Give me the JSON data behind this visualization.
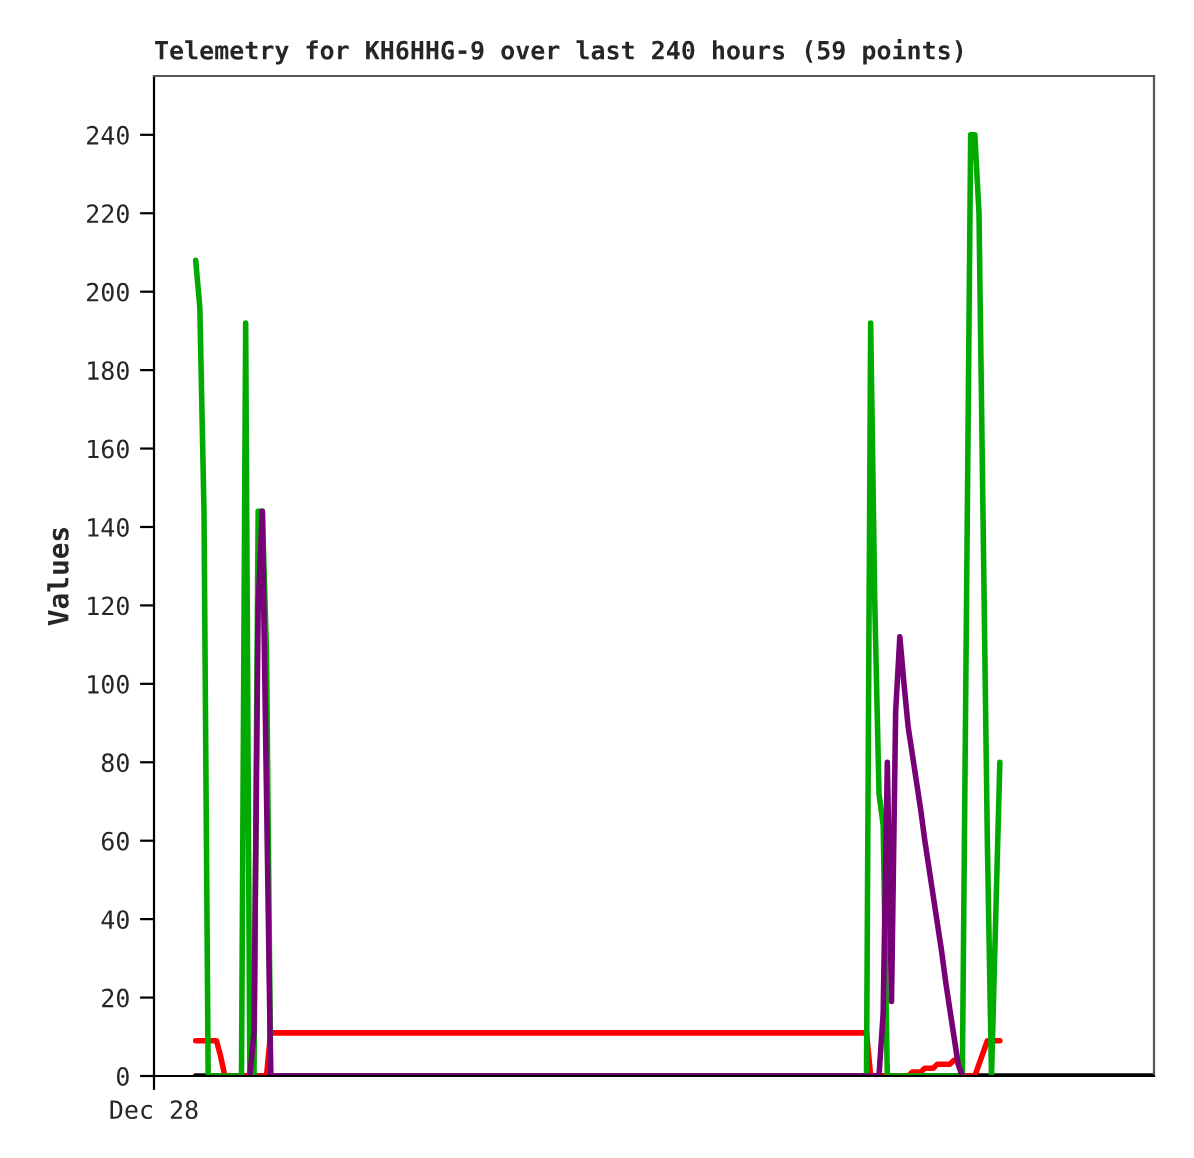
{
  "chart_data": {
    "type": "line",
    "title": "Telemetry for KH6HHG-9 over last 240 hours (59 points)",
    "ylabel": "Values",
    "categories": [
      "Dec 28",
      null,
      null,
      null,
      null,
      null,
      null,
      null,
      null,
      null,
      null,
      null,
      null,
      null,
      null,
      null,
      null,
      null,
      null,
      null,
      null,
      null,
      null,
      null,
      null,
      null,
      null,
      null,
      null,
      null,
      null,
      null,
      null,
      null,
      null,
      null,
      null,
      null,
      null,
      null,
      null,
      null,
      null,
      null,
      null,
      null,
      null,
      null,
      null,
      null,
      null,
      null,
      null,
      null,
      null,
      null,
      null,
      null,
      null,
      null,
      null,
      null,
      null,
      null,
      null,
      null,
      null,
      null,
      null,
      null,
      null,
      null,
      null,
      null,
      null,
      null,
      null,
      null,
      null,
      null,
      null,
      null,
      null,
      null,
      null,
      null,
      null,
      null,
      null,
      null,
      null,
      null,
      null,
      null,
      null,
      null,
      null,
      null,
      null,
      null,
      null,
      null,
      null,
      null,
      null,
      null,
      null,
      null,
      null,
      null,
      null,
      null,
      null,
      null,
      null,
      null,
      null,
      null,
      null,
      null,
      null,
      null,
      null,
      null,
      null,
      null,
      null,
      null,
      null,
      null,
      null,
      null,
      null,
      null,
      null,
      null,
      null,
      null,
      null,
      null,
      null,
      null,
      null,
      null,
      null,
      null,
      null,
      null,
      null,
      null,
      null,
      null,
      null,
      null,
      null,
      null,
      null,
      null,
      null,
      null,
      null,
      null,
      null,
      null,
      null,
      null,
      null,
      null,
      null,
      null,
      null,
      null,
      null,
      null,
      null,
      null,
      null,
      null,
      null,
      null,
      null,
      null,
      null,
      null,
      null,
      null,
      null,
      null,
      null,
      null,
      null,
      null,
      null,
      null,
      null,
      null,
      null,
      null,
      null,
      null,
      null,
      null,
      null,
      null,
      null,
      null,
      null,
      null,
      null,
      null,
      null,
      null,
      null,
      null,
      null,
      null,
      null,
      null,
      null,
      null,
      null,
      null,
      null,
      null,
      null,
      null,
      null,
      null,
      null,
      null,
      null,
      null,
      null,
      null,
      null,
      null,
      null,
      null,
      null,
      null,
      null
    ],
    "ylim": [
      0,
      255
    ],
    "yticks": [
      0,
      20,
      40,
      60,
      80,
      100,
      120,
      140,
      160,
      180,
      200,
      220,
      240
    ],
    "grid": false,
    "legend": false,
    "marker": "none",
    "line_style": "solid",
    "series": [
      {
        "color": "#000000",
        "values": [
          null,
          null,
          null,
          null,
          null,
          null,
          null,
          null,
          null,
          null,
          0,
          0,
          0,
          0,
          0,
          0,
          0,
          0,
          0,
          0,
          0,
          0,
          0,
          0,
          0,
          0,
          0,
          0,
          0,
          0,
          0,
          0,
          0,
          0,
          0,
          0,
          0,
          0,
          0,
          0,
          0,
          0,
          0,
          0,
          0,
          0,
          0,
          0,
          0,
          0,
          0,
          0,
          0,
          0,
          0,
          0,
          0,
          0,
          0,
          0,
          0,
          0,
          0,
          0,
          0,
          0,
          0,
          0,
          0,
          0,
          0,
          0,
          0,
          0,
          0,
          0,
          0,
          0,
          0,
          0,
          0,
          0,
          0,
          0,
          0,
          0,
          0,
          0,
          0,
          0,
          0,
          0,
          0,
          0,
          0,
          0,
          0,
          0,
          0,
          0,
          0,
          0,
          0,
          0,
          0,
          0,
          0,
          0,
          0,
          0,
          0,
          0,
          0,
          0,
          0,
          0,
          0,
          0,
          0,
          0,
          0,
          0,
          0,
          0,
          0,
          0,
          0,
          0,
          0,
          0,
          0,
          0,
          0,
          0,
          0,
          0,
          0,
          0,
          0,
          0,
          0,
          0,
          0,
          0,
          0,
          0,
          0,
          0,
          0,
          0,
          0,
          0,
          0,
          0,
          0,
          0,
          0,
          0,
          0,
          0,
          0,
          0,
          0,
          0,
          0,
          0,
          0,
          0,
          0,
          0,
          0,
          0,
          0,
          0,
          0,
          0,
          0,
          0,
          0,
          0,
          0,
          0,
          0,
          0,
          0,
          0,
          0,
          0,
          0,
          0,
          0,
          0,
          0,
          0,
          0,
          0,
          0,
          0,
          0,
          0,
          0,
          0,
          0,
          0,
          0,
          0,
          0,
          0,
          0,
          0,
          0,
          0,
          0,
          0,
          0,
          0,
          0,
          0,
          0,
          0,
          0,
          0,
          0,
          0,
          0,
          0,
          0,
          0,
          0,
          0,
          0,
          0,
          0,
          0,
          0,
          0,
          0,
          0,
          0,
          0,
          0
        ]
      },
      {
        "color": "#ff0000",
        "values": [
          null,
          null,
          null,
          null,
          null,
          null,
          null,
          null,
          null,
          null,
          9,
          9,
          9,
          9,
          9,
          9,
          5,
          0,
          0,
          0,
          0,
          0,
          0,
          0,
          0,
          0,
          0,
          0,
          11,
          11,
          11,
          11,
          11,
          11,
          11,
          11,
          11,
          11,
          11,
          11,
          11,
          11,
          11,
          11,
          11,
          11,
          11,
          11,
          11,
          11,
          11,
          11,
          11,
          11,
          11,
          11,
          11,
          11,
          11,
          11,
          11,
          11,
          11,
          11,
          11,
          11,
          11,
          11,
          11,
          11,
          11,
          11,
          11,
          11,
          11,
          11,
          11,
          11,
          11,
          11,
          11,
          11,
          11,
          11,
          11,
          11,
          11,
          11,
          11,
          11,
          11,
          11,
          11,
          11,
          11,
          11,
          11,
          11,
          11,
          11,
          11,
          11,
          11,
          11,
          11,
          11,
          11,
          11,
          11,
          11,
          11,
          11,
          11,
          11,
          11,
          11,
          11,
          11,
          11,
          11,
          11,
          11,
          11,
          11,
          11,
          11,
          11,
          11,
          11,
          11,
          11,
          11,
          11,
          11,
          11,
          11,
          11,
          11,
          11,
          11,
          11,
          11,
          11,
          11,
          11,
          11,
          11,
          11,
          11,
          11,
          11,
          11,
          11,
          11,
          11,
          11,
          11,
          11,
          11,
          11,
          11,
          11,
          11,
          11,
          11,
          11,
          11,
          11,
          11,
          11,
          11,
          11,
          0,
          0,
          0,
          0,
          0,
          0,
          0,
          0,
          0,
          0,
          1,
          1,
          1,
          2,
          2,
          2,
          3,
          3,
          3,
          3,
          4,
          4,
          0,
          0,
          0,
          0,
          3,
          6,
          9,
          9,
          9,
          9,
          null,
          null,
          null,
          null,
          null,
          null,
          null,
          null,
          null,
          null,
          null,
          null,
          null,
          null,
          null,
          null,
          null,
          null,
          null,
          null,
          null,
          null,
          null,
          null,
          null,
          null,
          null,
          null,
          null,
          null,
          null,
          null,
          null,
          null,
          null,
          null,
          null
        ]
      },
      {
        "color": "#00aa00",
        "values": [
          null,
          null,
          null,
          null,
          null,
          null,
          null,
          null,
          null,
          null,
          208,
          196,
          144,
          0,
          0,
          0,
          0,
          0,
          0,
          0,
          0,
          0,
          192,
          0,
          0,
          144,
          144,
          108,
          0,
          null,
          null,
          null,
          null,
          null,
          null,
          null,
          null,
          null,
          null,
          null,
          null,
          null,
          null,
          null,
          null,
          null,
          null,
          null,
          null,
          null,
          null,
          null,
          null,
          null,
          null,
          null,
          null,
          null,
          null,
          null,
          null,
          null,
          null,
          null,
          null,
          null,
          null,
          null,
          null,
          null,
          null,
          null,
          null,
          null,
          null,
          null,
          null,
          null,
          null,
          null,
          null,
          null,
          null,
          null,
          null,
          null,
          null,
          null,
          null,
          null,
          null,
          null,
          null,
          null,
          null,
          null,
          null,
          null,
          null,
          null,
          null,
          null,
          null,
          null,
          null,
          null,
          null,
          null,
          null,
          null,
          null,
          null,
          null,
          null,
          null,
          null,
          null,
          null,
          null,
          null,
          null,
          null,
          null,
          null,
          null,
          null,
          null,
          null,
          null,
          null,
          null,
          null,
          null,
          null,
          null,
          null,
          null,
          null,
          null,
          null,
          null,
          null,
          null,
          null,
          null,
          null,
          null,
          null,
          null,
          null,
          null,
          null,
          null,
          null,
          null,
          null,
          null,
          null,
          null,
          null,
          null,
          null,
          null,
          null,
          null,
          null,
          null,
          null,
          null,
          null,
          null,
          0,
          192,
          120,
          72,
          64,
          0,
          0,
          0,
          0,
          0,
          0,
          0,
          0,
          0,
          0,
          0,
          0,
          0,
          0,
          0,
          0,
          0,
          0,
          0,
          120,
          240,
          240,
          220,
          140,
          60,
          0,
          40,
          80,
          null,
          null,
          null,
          null,
          null,
          null,
          null,
          null,
          null,
          null,
          null,
          null,
          null,
          null,
          null,
          null,
          null,
          null,
          null,
          null,
          null,
          null,
          null,
          null,
          null,
          null,
          null,
          null,
          null,
          null,
          null,
          null,
          null,
          null,
          null,
          null,
          null
        ]
      },
      {
        "color": "#770077",
        "values": [
          null,
          null,
          null,
          null,
          null,
          null,
          null,
          null,
          null,
          null,
          null,
          null,
          null,
          null,
          null,
          null,
          null,
          null,
          null,
          null,
          null,
          null,
          null,
          0,
          11,
          120,
          144,
          72,
          0,
          0,
          0,
          0,
          0,
          0,
          0,
          0,
          0,
          0,
          0,
          0,
          0,
          0,
          0,
          0,
          0,
          0,
          0,
          0,
          0,
          0,
          0,
          0,
          0,
          0,
          0,
          0,
          0,
          0,
          0,
          0,
          0,
          0,
          0,
          0,
          0,
          0,
          0,
          0,
          0,
          0,
          0,
          0,
          0,
          0,
          0,
          0,
          0,
          0,
          0,
          0,
          0,
          0,
          0,
          0,
          0,
          0,
          0,
          0,
          0,
          0,
          0,
          0,
          0,
          0,
          0,
          0,
          0,
          0,
          0,
          0,
          0,
          0,
          0,
          0,
          0,
          0,
          0,
          0,
          0,
          0,
          0,
          0,
          0,
          0,
          0,
          0,
          0,
          0,
          0,
          0,
          0,
          0,
          0,
          0,
          0,
          0,
          0,
          0,
          0,
          0,
          0,
          0,
          0,
          0,
          0,
          0,
          0,
          0,
          0,
          0,
          0,
          0,
          0,
          0,
          0,
          0,
          0,
          0,
          0,
          0,
          0,
          0,
          0,
          0,
          0,
          0,
          0,
          0,
          0,
          0,
          0,
          0,
          0,
          0,
          0,
          0,
          0,
          0,
          0,
          0,
          0,
          0,
          0,
          0,
          0,
          16,
          80,
          19,
          93,
          112,
          100,
          89,
          82,
          75,
          68,
          60,
          53,
          46,
          39,
          32,
          24,
          17,
          10,
          3,
          0,
          null,
          null,
          null,
          null,
          null,
          null,
          null,
          null,
          null,
          null,
          null,
          null,
          null,
          null,
          null,
          null,
          null,
          null,
          null,
          null,
          null,
          null,
          null,
          null,
          null,
          null,
          null,
          null,
          null,
          null,
          null,
          null,
          null,
          null,
          null,
          null,
          null,
          null,
          null,
          null,
          null,
          null,
          null,
          null,
          null,
          null
        ]
      }
    ]
  }
}
